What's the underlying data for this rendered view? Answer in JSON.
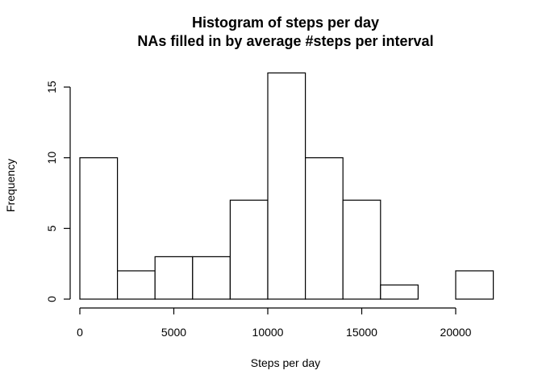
{
  "chart_data": {
    "type": "bar",
    "title": "Histogram of steps per day",
    "subtitle": "NAs filled in by average #steps per interval",
    "xlabel": "Steps per day",
    "ylabel": "Frequency",
    "bins": [
      {
        "start": 0,
        "end": 2000,
        "count": 10
      },
      {
        "start": 2000,
        "end": 4000,
        "count": 2
      },
      {
        "start": 4000,
        "end": 6000,
        "count": 3
      },
      {
        "start": 6000,
        "end": 8000,
        "count": 3
      },
      {
        "start": 8000,
        "end": 10000,
        "count": 7
      },
      {
        "start": 10000,
        "end": 12000,
        "count": 16
      },
      {
        "start": 12000,
        "end": 14000,
        "count": 10
      },
      {
        "start": 14000,
        "end": 16000,
        "count": 7
      },
      {
        "start": 16000,
        "end": 18000,
        "count": 1
      },
      {
        "start": 18000,
        "end": 20000,
        "count": 0
      },
      {
        "start": 20000,
        "end": 22000,
        "count": 2
      }
    ],
    "xticks": [
      0,
      5000,
      10000,
      15000,
      20000
    ],
    "yticks": [
      0,
      5,
      10,
      15
    ],
    "xlim": [
      0,
      22000
    ],
    "ylim": [
      0,
      16
    ],
    "grid": false,
    "legend": "none",
    "colors": {
      "bar_fill": "#ffffff",
      "bar_stroke": "#000000"
    }
  }
}
